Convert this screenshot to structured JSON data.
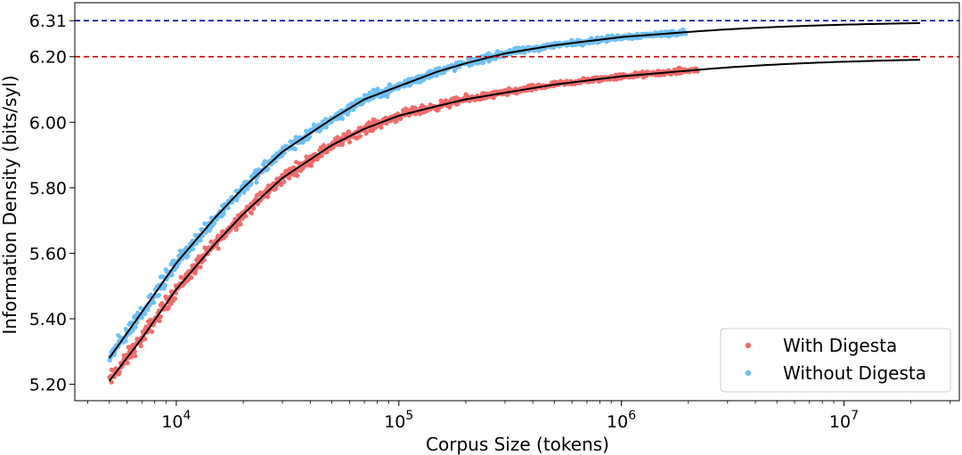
{
  "chart_data": {
    "type": "scatter",
    "xlabel": "Corpus Size (tokens)",
    "ylabel": "Information Density (bits/syl)",
    "x_scale": "log",
    "xlim": [
      3500,
      33000000
    ],
    "ylim": [
      5.15,
      6.365
    ],
    "x_ticks": [
      {
        "value": 10000,
        "base": "10",
        "exp": "4"
      },
      {
        "value": 100000,
        "base": "10",
        "exp": "5"
      },
      {
        "value": 1000000,
        "base": "10",
        "exp": "6"
      },
      {
        "value": 10000000,
        "base": "10",
        "exp": "7"
      }
    ],
    "y_ticks": [
      {
        "value": 5.2,
        "label": "5.20"
      },
      {
        "value": 5.4,
        "label": "5.40"
      },
      {
        "value": 5.6,
        "label": "5.60"
      },
      {
        "value": 5.8,
        "label": "5.80"
      },
      {
        "value": 6.0,
        "label": "6.00"
      },
      {
        "value": 6.2,
        "label": "6.20"
      },
      {
        "value": 6.31,
        "label": "6.31"
      }
    ],
    "reference_lines": [
      {
        "y": 6.31,
        "color": "#0000aa",
        "style": "dashed"
      },
      {
        "y": 6.2,
        "color": "#cc0000",
        "style": "dashed"
      }
    ],
    "legend_position": "lower-right",
    "grid": false,
    "series": [
      {
        "name": "With Digesta",
        "color": "#f26b6b",
        "x_range": [
          5000,
          2200000
        ],
        "points": [
          {
            "x": 5000,
            "y": 5.21
          },
          {
            "x": 7000,
            "y": 5.34
          },
          {
            "x": 10000,
            "y": 5.49
          },
          {
            "x": 15000,
            "y": 5.63
          },
          {
            "x": 20000,
            "y": 5.72
          },
          {
            "x": 30000,
            "y": 5.83
          },
          {
            "x": 50000,
            "y": 5.93
          },
          {
            "x": 70000,
            "y": 5.98
          },
          {
            "x": 100000,
            "y": 6.02
          },
          {
            "x": 150000,
            "y": 6.05
          },
          {
            "x": 200000,
            "y": 6.07
          },
          {
            "x": 300000,
            "y": 6.09
          },
          {
            "x": 500000,
            "y": 6.115
          },
          {
            "x": 1000000,
            "y": 6.14
          },
          {
            "x": 2200000,
            "y": 6.16
          }
        ],
        "fit": {
          "asymptote": 6.2,
          "curve_end_x": 22000000
        }
      },
      {
        "name": "Without Digesta",
        "color": "#6ec0f5",
        "x_range": [
          5000,
          1950000
        ],
        "points": [
          {
            "x": 5000,
            "y": 5.28
          },
          {
            "x": 7000,
            "y": 5.42
          },
          {
            "x": 10000,
            "y": 5.57
          },
          {
            "x": 15000,
            "y": 5.71
          },
          {
            "x": 20000,
            "y": 5.8
          },
          {
            "x": 30000,
            "y": 5.91
          },
          {
            "x": 50000,
            "y": 6.01
          },
          {
            "x": 70000,
            "y": 6.07
          },
          {
            "x": 100000,
            "y": 6.11
          },
          {
            "x": 150000,
            "y": 6.155
          },
          {
            "x": 200000,
            "y": 6.18
          },
          {
            "x": 300000,
            "y": 6.21
          },
          {
            "x": 500000,
            "y": 6.235
          },
          {
            "x": 1000000,
            "y": 6.26
          },
          {
            "x": 1950000,
            "y": 6.275
          }
        ],
        "fit": {
          "asymptote": 6.31,
          "curve_end_x": 22000000
        }
      }
    ]
  }
}
